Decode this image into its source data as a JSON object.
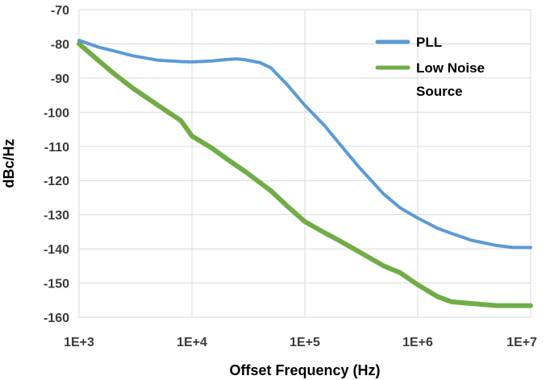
{
  "chart_data": {
    "type": "line",
    "title": "",
    "xlabel": "Offset Frequency (Hz)",
    "ylabel": "dBc/Hz",
    "x_scale": "log",
    "xlim": [
      1000,
      10000000
    ],
    "ylim": [
      -160,
      -70
    ],
    "x_ticks": [
      {
        "value": 1000,
        "label": "1E+3"
      },
      {
        "value": 10000,
        "label": "1E+4"
      },
      {
        "value": 100000,
        "label": "1E+5"
      },
      {
        "value": 1000000,
        "label": "1E+6"
      },
      {
        "value": 10000000,
        "label": "1E+7"
      }
    ],
    "y_ticks": [
      {
        "value": -70,
        "label": "-70"
      },
      {
        "value": -80,
        "label": "-80"
      },
      {
        "value": -90,
        "label": "-90"
      },
      {
        "value": -100,
        "label": "-100"
      },
      {
        "value": -110,
        "label": "-110"
      },
      {
        "value": -120,
        "label": "-120"
      },
      {
        "value": -130,
        "label": "-130"
      },
      {
        "value": -140,
        "label": "-140"
      },
      {
        "value": -150,
        "label": "-150"
      },
      {
        "value": -160,
        "label": "-160"
      }
    ],
    "grid": "vertical-and-horizontal",
    "legend": "top-right",
    "series": [
      {
        "name": "PLL",
        "legend_lines": [
          "PLL"
        ],
        "color": "#5b9bd5",
        "x": [
          1000,
          1500,
          2000,
          3000,
          5000,
          8000,
          10000,
          15000,
          20000,
          25000,
          30000,
          40000,
          50000,
          70000,
          100000,
          150000,
          200000,
          300000,
          500000,
          700000,
          1000000,
          1500000,
          2000000,
          3000000,
          5000000,
          7000000,
          10000000
        ],
        "y": [
          -79,
          -81,
          -82,
          -83.5,
          -84.8,
          -85.2,
          -85.3,
          -85.0,
          -84.6,
          -84.4,
          -84.7,
          -85.5,
          -87,
          -92,
          -98,
          -104,
          -109,
          -116,
          -124,
          -128,
          -131,
          -134,
          -135.5,
          -137.5,
          -139,
          -139.6,
          -139.6
        ]
      },
      {
        "name": "Low Noise Source",
        "legend_lines": [
          "Low Noise",
          "Source"
        ],
        "color": "#70ad47",
        "x": [
          1000,
          1500,
          2000,
          3000,
          5000,
          8000,
          10000,
          15000,
          20000,
          30000,
          50000,
          70000,
          100000,
          150000,
          200000,
          300000,
          500000,
          700000,
          1000000,
          1500000,
          2000000,
          3000000,
          5000000,
          7000000,
          10000000
        ],
        "y": [
          -80,
          -85,
          -88.5,
          -93,
          -98,
          -102.5,
          -107,
          -110.5,
          -113.5,
          -117.5,
          -123,
          -127.5,
          -132,
          -135.3,
          -137.5,
          -140.8,
          -145,
          -147,
          -150.5,
          -154,
          -155.5,
          -156,
          -156.6,
          -156.6,
          -156.6
        ]
      }
    ]
  }
}
